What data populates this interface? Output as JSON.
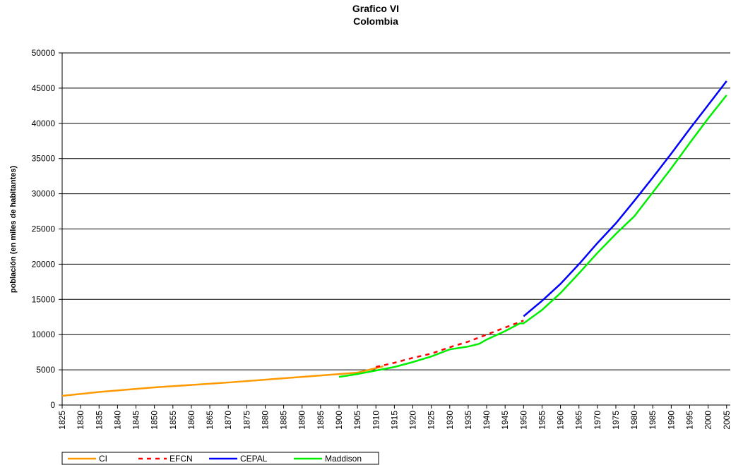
{
  "chart_data": {
    "type": "line",
    "title": "Grafico VI",
    "subtitle": "Colombia",
    "ylabel": "población (en miles de habitantes)",
    "xlim": [
      1825,
      2006
    ],
    "ylim": [
      0,
      50000
    ],
    "xticks": [
      1825,
      1830,
      1835,
      1840,
      1845,
      1850,
      1855,
      1860,
      1865,
      1870,
      1875,
      1880,
      1885,
      1890,
      1895,
      1900,
      1905,
      1910,
      1915,
      1920,
      1925,
      1930,
      1935,
      1940,
      1945,
      1950,
      1955,
      1960,
      1965,
      1970,
      1975,
      1980,
      1985,
      1990,
      1995,
      2000,
      2005
    ],
    "yticks": [
      0,
      5000,
      10000,
      15000,
      20000,
      25000,
      30000,
      35000,
      40000,
      45000,
      50000
    ],
    "grid": true,
    "legend": "bottom-left",
    "series": [
      {
        "name": "CI",
        "color": "#ff9900",
        "dashed": false,
        "x": [
          1825,
          1835,
          1850,
          1870,
          1890,
          1905,
          1912
        ],
        "values": [
          1300,
          1850,
          2500,
          3200,
          4000,
          4600,
          5500
        ]
      },
      {
        "name": "EFCN",
        "color": "#ff0000",
        "dashed": true,
        "x": [
          1910,
          1915,
          1920,
          1925,
          1930,
          1935,
          1940,
          1945,
          1950
        ],
        "values": [
          5400,
          6000,
          6700,
          7300,
          8200,
          9000,
          10000,
          11000,
          12000
        ]
      },
      {
        "name": "CEPAL",
        "color": "#0000ff",
        "dashed": false,
        "x": [
          1950,
          1955,
          1960,
          1965,
          1970,
          1975,
          1980,
          1985,
          1990,
          1995,
          2000,
          2005
        ],
        "values": [
          12600,
          14800,
          17200,
          20000,
          23000,
          25800,
          29000,
          32300,
          35700,
          39200,
          42600,
          46000
        ]
      },
      {
        "name": "Maddison",
        "color": "#00ee00",
        "dashed": false,
        "x": [
          1900,
          1905,
          1910,
          1915,
          1920,
          1925,
          1930,
          1935,
          1938,
          1940,
          1945,
          1949,
          1950,
          1955,
          1960,
          1965,
          1970,
          1975,
          1980,
          1985,
          1990,
          1995,
          2000,
          2005
        ],
        "values": [
          4000,
          4400,
          4900,
          5400,
          6100,
          6900,
          7900,
          8300,
          8700,
          9300,
          10500,
          11600,
          11600,
          13500,
          15900,
          18700,
          21600,
          24300,
          26800,
          30200,
          33600,
          37200,
          40700,
          44000
        ]
      }
    ]
  }
}
